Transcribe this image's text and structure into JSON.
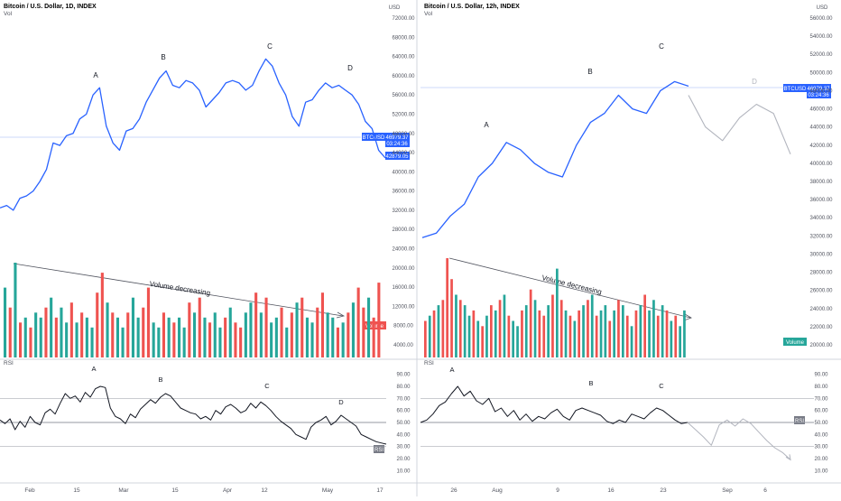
{
  "colors": {
    "price_line": "#2962ff",
    "projection_line": "#b2b5be",
    "bull": "#26a69a",
    "bear": "#ef5350",
    "rsi_line": "#131722",
    "grid_line": "#9598a1",
    "axis_text": "#50535e"
  },
  "panels": {
    "left": {
      "header_title": "Bitcoin / U.S. Dollar, 1D, INDEX",
      "header_vol": "Vol",
      "rsi_label": "RSI",
      "price_axis_unit": "USD",
      "price_badge": {
        "symbol": "BTCUSD",
        "price": "46979.37",
        "countdown": "03:24:36"
      },
      "low_badge": "42879.05",
      "volume_badge": "Volume",
      "rsi_badge": "RSI",
      "volume_trend_label": "Volume decreasing",
      "price_ticks": [
        "72000.00",
        "68000.00",
        "64000.00",
        "60000.00",
        "56000.00",
        "52000.00",
        "48000.00",
        "44000.00",
        "40000.00",
        "36000.00",
        "32000.00",
        "28000.00",
        "24000.00",
        "20000.00",
        "16000.00",
        "12000.00",
        "8000.00",
        "4000.00"
      ],
      "rsi_ticks": [
        "90.00",
        "80.00",
        "70.00",
        "60.00",
        "50.00",
        "40.00",
        "30.00",
        "20.00",
        "10.00"
      ],
      "time_ticks": [
        "Feb",
        "15",
        "Mar",
        "15",
        "Apr",
        "12",
        "May",
        "17"
      ],
      "wave_labels": [
        "A",
        "B",
        "C",
        "D"
      ],
      "rsi_wave_labels": [
        "A",
        "B",
        "C",
        "D"
      ]
    },
    "right": {
      "header_title": "Bitcoin / U.S. Dollar, 12h, INDEX",
      "header_vol": "Vol",
      "rsi_label": "RSI",
      "price_axis_unit": "USD",
      "price_badge": {
        "symbol": "BTCUSD",
        "price": "46979.37",
        "countdown": "03:24:36"
      },
      "volume_badge": "Volume",
      "rsi_badge": "RSI",
      "volume_trend_label": "Volume decreasing",
      "price_ticks": [
        "56000.00",
        "54000.00",
        "52000.00",
        "50000.00",
        "48000.00",
        "46000.00",
        "44000.00",
        "42000.00",
        "40000.00",
        "38000.00",
        "36000.00",
        "34000.00",
        "32000.00",
        "30000.00",
        "28000.00",
        "26000.00",
        "24000.00",
        "22000.00",
        "20000.00"
      ],
      "rsi_ticks": [
        "90.00",
        "80.00",
        "70.00",
        "60.00",
        "50.00",
        "40.00",
        "30.00",
        "20.00",
        "10.00"
      ],
      "time_ticks": [
        "26",
        "Aug",
        "9",
        "16",
        "23",
        "Sep",
        "6"
      ],
      "wave_labels": [
        "A",
        "B",
        "C",
        "D"
      ],
      "rsi_wave_labels": [
        "A",
        "B",
        "C"
      ]
    }
  },
  "chart_data": [
    {
      "type": "line",
      "panel": "left",
      "series": [
        {
          "x": [
            "Jan 23",
            "Jan 25",
            "Jan 27",
            "Jan 29",
            "Jan 31",
            "Feb 2",
            "Feb 4",
            "Feb 6",
            "Feb 8",
            "Feb 10",
            "Feb 12",
            "Feb 14",
            "Feb 16",
            "Feb 18",
            "Feb 20",
            "Feb 22",
            "Feb 24",
            "Feb 26",
            "Feb 28",
            "Mar 2",
            "Mar 4",
            "Mar 6",
            "Mar 8",
            "Mar 10",
            "Mar 12",
            "Mar 14",
            "Mar 16",
            "Mar 18",
            "Mar 20",
            "Mar 22",
            "Mar 24",
            "Mar 26",
            "Mar 28",
            "Mar 30",
            "Apr 1",
            "Apr 3",
            "Apr 5",
            "Apr 7",
            "Apr 9",
            "Apr 11",
            "Apr 13",
            "Apr 15",
            "Apr 17",
            "Apr 19",
            "Apr 21",
            "Apr 23",
            "Apr 25",
            "Apr 27",
            "Apr 29",
            "May 1",
            "May 3",
            "May 5",
            "May 7",
            "May 9",
            "May 11",
            "May 13",
            "May 15",
            "May 17",
            "May 19"
          ],
          "values": [
            32500,
            33000,
            32000,
            34500,
            35000,
            36000,
            38000,
            40500,
            46000,
            45500,
            47500,
            48000,
            51000,
            52000,
            56000,
            57500,
            49500,
            46000,
            44500,
            48500,
            49000,
            51000,
            54500,
            57000,
            59500,
            61000,
            58000,
            57500,
            59000,
            58500,
            57000,
            53500,
            55000,
            56500,
            58500,
            59000,
            58500,
            57000,
            58000,
            61000,
            63500,
            62000,
            58500,
            56000,
            51500,
            49500,
            54500,
            55000,
            57000,
            58500,
            57500,
            58000,
            57000,
            56000,
            54000,
            50500,
            49000,
            44500,
            42879
          ]
        }
      ],
      "wave_labels": [
        "A",
        "B",
        "C",
        "D"
      ],
      "ylim": [
        4000,
        72000
      ],
      "volume": {
        "values": [
          14,
          10,
          19,
          7,
          8,
          6,
          9,
          8,
          10,
          12,
          8,
          10,
          7,
          11,
          7,
          9,
          8,
          6,
          13,
          17,
          11,
          9,
          8,
          6,
          9,
          12,
          8,
          10,
          14,
          7,
          6,
          9,
          8,
          7,
          8,
          6,
          11,
          9,
          12,
          8,
          7,
          9,
          6,
          8,
          10,
          7,
          6,
          9,
          11,
          13,
          9,
          12,
          7,
          8,
          10,
          6,
          9,
          11,
          12,
          8,
          7,
          10,
          13,
          9,
          8,
          6,
          7,
          9,
          11,
          14,
          10,
          12,
          8,
          15
        ],
        "colors": [
          "bull",
          "bear",
          "bull",
          "bear",
          "bull",
          "bear",
          "bull",
          "bull",
          "bear",
          "bull",
          "bear",
          "bull",
          "bull",
          "bear",
          "bull",
          "bear",
          "bull",
          "bull",
          "bear",
          "bear",
          "bull",
          "bear",
          "bull",
          "bull",
          "bear",
          "bull",
          "bull",
          "bear",
          "bear",
          "bull",
          "bull",
          "bear",
          "bull",
          "bear",
          "bull",
          "bull",
          "bear",
          "bull",
          "bear",
          "bull",
          "bear",
          "bull",
          "bull",
          "bear",
          "bull",
          "bear",
          "bear",
          "bull",
          "bull",
          "bear",
          "bull",
          "bear",
          "bull",
          "bull",
          "bear",
          "bull",
          "bear",
          "bull",
          "bear",
          "bull",
          "bull",
          "bear",
          "bear",
          "bull",
          "bull",
          "bear",
          "bull",
          "bear",
          "bull",
          "bear",
          "bear",
          "bull",
          "bear",
          "bear"
        ]
      },
      "rsi": {
        "values": [
          52,
          49,
          53,
          44,
          51,
          46,
          55,
          50,
          48,
          58,
          61,
          57,
          66,
          74,
          70,
          72,
          67,
          75,
          71,
          78,
          80,
          79,
          62,
          55,
          53,
          49,
          57,
          54,
          61,
          65,
          69,
          66,
          71,
          74,
          72,
          67,
          62,
          60,
          58,
          57,
          53,
          55,
          52,
          60,
          57,
          63,
          65,
          62,
          58,
          60,
          66,
          62,
          67,
          64,
          60,
          55,
          51,
          48,
          45,
          40,
          38,
          36,
          46,
          50,
          52,
          55,
          48,
          51,
          56,
          53,
          50,
          47,
          40,
          38,
          36,
          34,
          33,
          32
        ]
      }
    },
    {
      "type": "line",
      "panel": "right",
      "series": [
        {
          "name": "",
          "x": [
            "Jul 20",
            "Jul 22",
            "Jul 24",
            "Jul 26",
            "Jul 28",
            "Jul 30",
            "Aug 1",
            "Aug 3",
            "Aug 5",
            "Aug 7",
            "Aug 9",
            "Aug 11",
            "Aug 13",
            "Aug 15",
            "Aug 17",
            "Aug 19",
            "Aug 21",
            "Aug 23",
            "Aug 25",
            "Aug 27"
          ],
          "values": [
            31800,
            32300,
            34200,
            35500,
            38500,
            40000,
            42300,
            41500,
            40000,
            39000,
            38500,
            42000,
            44500,
            45500,
            47500,
            46000,
            45500,
            48000,
            49000,
            48500
          ]
        },
        {
          "name": "",
          "x": [
            "Aug 28",
            "Aug 30",
            "Sep 1",
            "Sep 3",
            "Sep 5",
            "Sep 7",
            "Sep 9"
          ],
          "values": [
            47500,
            44000,
            42500,
            45000,
            46500,
            45500,
            41000
          ],
          "style": "projection"
        }
      ],
      "wave_labels": [
        "A",
        "B",
        "C",
        "D"
      ],
      "ylim": [
        20000,
        56000
      ],
      "volume": {
        "values": [
          7,
          8,
          9,
          10,
          11,
          19,
          15,
          12,
          11,
          10,
          8,
          9,
          7,
          6,
          8,
          10,
          9,
          11,
          12,
          8,
          7,
          6,
          9,
          10,
          13,
          11,
          9,
          8,
          10,
          12,
          17,
          11,
          9,
          8,
          7,
          9,
          10,
          11,
          12,
          8,
          9,
          10,
          7,
          9,
          11,
          10,
          8,
          6,
          9,
          10,
          12,
          9,
          11,
          8,
          10,
          9,
          7,
          8,
          6,
          9
        ],
        "colors": [
          "bear",
          "bull",
          "bear",
          "bull",
          "bear",
          "bear",
          "bear",
          "bull",
          "bear",
          "bull",
          "bull",
          "bear",
          "bull",
          "bear",
          "bull",
          "bear",
          "bull",
          "bear",
          "bull",
          "bear",
          "bull",
          "bull",
          "bear",
          "bull",
          "bear",
          "bull",
          "bear",
          "bear",
          "bull",
          "bear",
          "bull",
          "bear",
          "bull",
          "bear",
          "bull",
          "bear",
          "bull",
          "bear",
          "bull",
          "bear",
          "bull",
          "bull",
          "bear",
          "bull",
          "bear",
          "bull",
          "bear",
          "bull",
          "bear",
          "bull",
          "bear",
          "bull",
          "bull",
          "bear",
          "bull",
          "bear",
          "bull",
          "bear",
          "bull",
          "bull"
        ]
      },
      "rsi": {
        "values": [
          50,
          52,
          57,
          64,
          67,
          74,
          80,
          72,
          76,
          68,
          65,
          70,
          59,
          62,
          55,
          60,
          52,
          57,
          51,
          55,
          53,
          58,
          61,
          55,
          52,
          60,
          62,
          60,
          58,
          56,
          51,
          49,
          52,
          50,
          57,
          55,
          53,
          58,
          62,
          60,
          56,
          52,
          49,
          50
        ],
        "projection": [
          50,
          44,
          38,
          31,
          48,
          52,
          47,
          53,
          49,
          42,
          35,
          29,
          25,
          19
        ]
      }
    }
  ]
}
